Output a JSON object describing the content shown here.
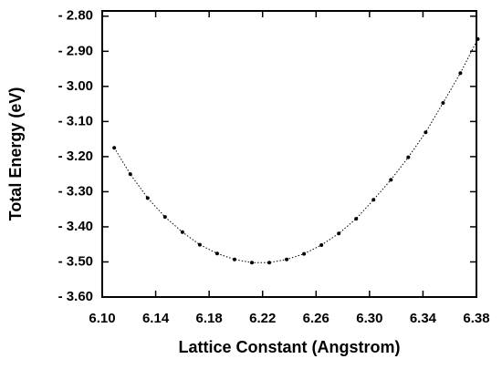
{
  "chart_data": {
    "type": "scatter",
    "xlabel": "Lattice Constant (Angstrom)",
    "ylabel": "Total Energy (eV)",
    "xlim": [
      6.1,
      6.38
    ],
    "xticks": [
      {
        "value": 6.1,
        "label": "6.10"
      },
      6.14,
      6.18,
      6.22,
      6.26,
      {
        "value": 6.3,
        "label": "6.30"
      },
      6.34,
      6.38
    ],
    "ylim": [
      -3.6,
      -2.785
    ],
    "yticks": [
      {
        "value": -2.8,
        "label": "- 2.80"
      },
      {
        "value": -2.9,
        "label": "- 2.90"
      },
      {
        "value": -3.0,
        "label": "- 3.00"
      },
      {
        "value": -3.1,
        "label": "- 3.10"
      },
      {
        "value": -3.2,
        "label": "- 3.20"
      },
      {
        "value": -3.3,
        "label": "- 3.30"
      },
      {
        "value": -3.4,
        "label": "- 3.40"
      },
      {
        "value": -3.5,
        "label": "- 3.50"
      },
      {
        "value": -3.6,
        "label": "- 3.60"
      }
    ],
    "color": "#000000",
    "x": [
      6.109,
      6.121,
      6.134,
      6.147,
      6.16,
      6.173,
      6.186,
      6.199,
      6.212,
      6.225,
      6.238,
      6.251,
      6.264,
      6.277,
      6.29,
      6.303,
      6.316,
      6.329,
      6.342,
      6.355,
      6.368,
      6.381
    ],
    "values": [
      -3.175,
      -3.25,
      -3.318,
      -3.372,
      -3.415,
      -3.451,
      -3.476,
      -3.493,
      -3.502,
      -3.502,
      -3.493,
      -3.477,
      -3.452,
      -3.419,
      -3.377,
      -3.323,
      -3.266,
      -3.202,
      -3.131,
      -3.047,
      -2.962,
      -2.865
    ]
  }
}
